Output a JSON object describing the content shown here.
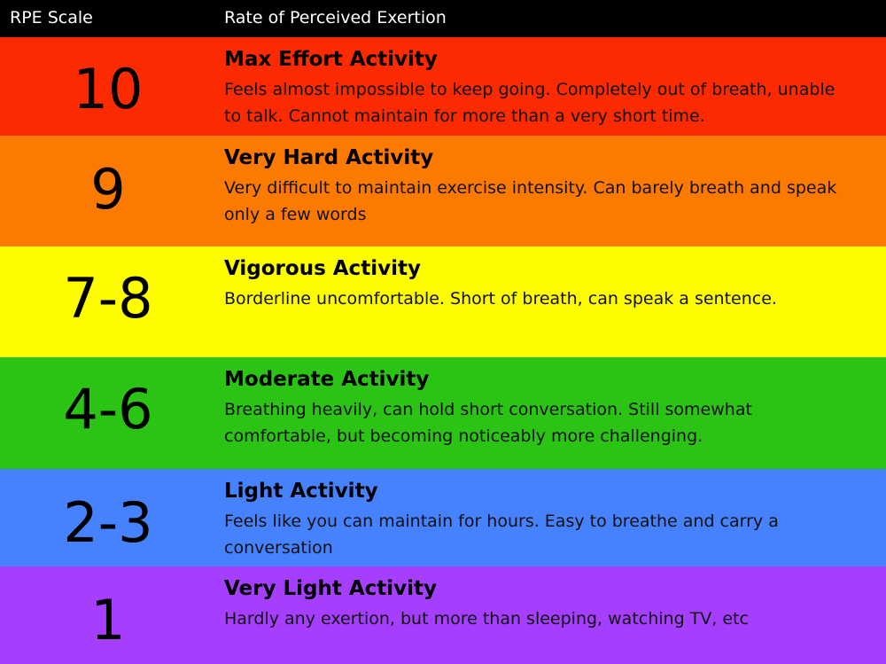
{
  "header": {
    "scale_label": "RPE Scale",
    "exertion_label": "Rate of Perceived Exertion"
  },
  "rows": [
    {
      "level": "10",
      "title": "Max Effort Activity",
      "description": "Feels almost impossible to keep going. Completely out of breath, unable to talk. Cannot maintain for more than a very short time.",
      "color": "#fc2a00"
    },
    {
      "level": "9",
      "title": "Very Hard Activity",
      "description": "Very difficult to maintain exercise intensity. Can barely breath and speak only a few words",
      "color": "#fd7a00"
    },
    {
      "level": "7-8",
      "title": "Vigorous Activity",
      "description": "Borderline uncomfortable. Short of breath, can speak a sentence.",
      "color": "#fefd00"
    },
    {
      "level": "4-6",
      "title": "Moderate Activity",
      "description": "Breathing heavily, can hold short conversation. Still somewhat comfortable, but becoming noticeably more challenging.",
      "color": "#2bc314"
    },
    {
      "level": "2-3",
      "title": "Light Activity",
      "description": "Feels like you can maintain for hours. Easy to breathe and carry a conversation",
      "color": "#4682fe"
    },
    {
      "level": "1",
      "title": "Very Light Activity",
      "description": "Hardly any exertion, but more than sleeping, watching TV, etc",
      "color": "#a63ffd"
    }
  ]
}
